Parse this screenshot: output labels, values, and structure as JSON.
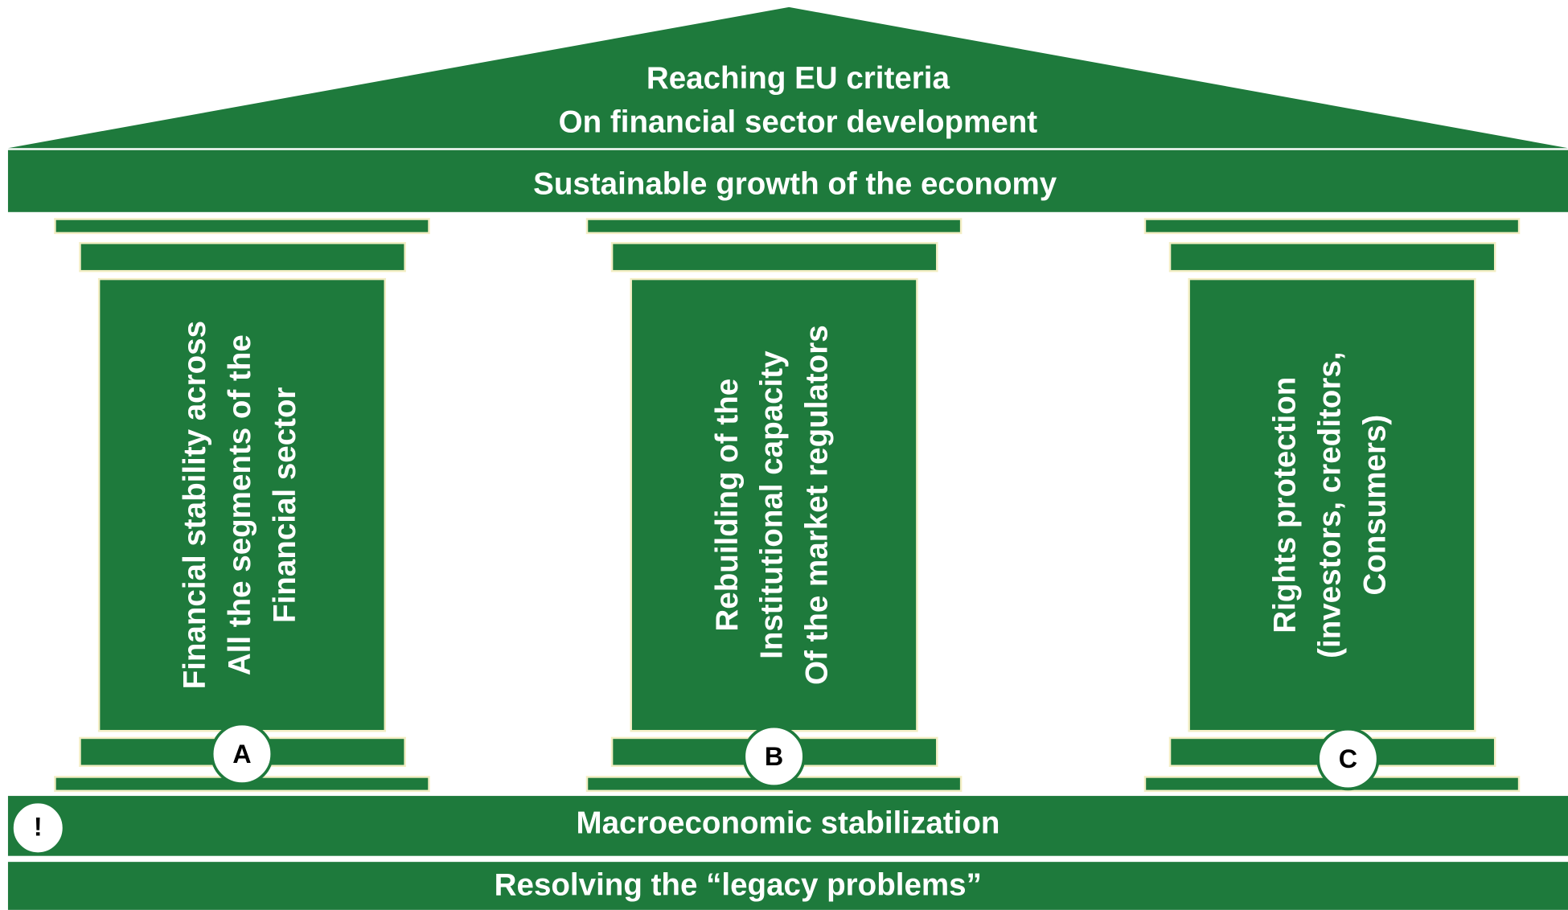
{
  "roof": {
    "lines": [
      "Reaching EU criteria",
      "On financial sector development"
    ]
  },
  "beam": "Sustainable growth of the economy",
  "pillars": [
    {
      "badge": "A",
      "lines": [
        "Financial stability across",
        "All the segments of the",
        "Financial sector"
      ]
    },
    {
      "badge": "B",
      "lines": [
        "Rebuilding of the",
        "Institutional capacity",
        "Of the market regulators"
      ]
    },
    {
      "badge": "C",
      "lines": [
        "Rights protection",
        "(investors, creditors,",
        "Consumers)"
      ]
    }
  ],
  "foundation": {
    "badge": "!",
    "macro": "Macroeconomic stabilization",
    "legacy": "Resolving the “legacy problems”"
  }
}
